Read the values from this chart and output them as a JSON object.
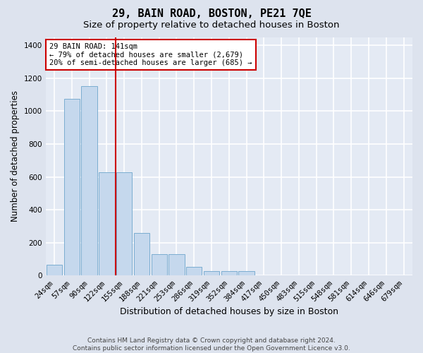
{
  "title": "29, BAIN ROAD, BOSTON, PE21 7QE",
  "subtitle": "Size of property relative to detached houses in Boston",
  "xlabel": "Distribution of detached houses by size in Boston",
  "ylabel": "Number of detached properties",
  "footnote": "Contains HM Land Registry data © Crown copyright and database right 2024.\nContains public sector information licensed under the Open Government Licence v3.0.",
  "categories": [
    "24sqm",
    "57sqm",
    "90sqm",
    "122sqm",
    "155sqm",
    "188sqm",
    "221sqm",
    "253sqm",
    "286sqm",
    "319sqm",
    "352sqm",
    "384sqm",
    "417sqm",
    "450sqm",
    "483sqm",
    "515sqm",
    "548sqm",
    "581sqm",
    "614sqm",
    "646sqm",
    "679sqm"
  ],
  "values": [
    65,
    1075,
    1150,
    630,
    630,
    260,
    130,
    130,
    55,
    30,
    30,
    30,
    0,
    0,
    0,
    0,
    0,
    0,
    0,
    0,
    0
  ],
  "bar_color": "#c5d8ed",
  "bar_edge_color": "#7badd1",
  "vline_color": "#cc0000",
  "annotation_text": "29 BAIN ROAD: 141sqm\n← 79% of detached houses are smaller (2,679)\n20% of semi-detached houses are larger (685) →",
  "annotation_box_color": "white",
  "annotation_box_edge": "#cc0000",
  "ylim": [
    0,
    1450
  ],
  "yticks": [
    0,
    200,
    400,
    600,
    800,
    1000,
    1200,
    1400
  ],
  "background_color": "#dde3ee",
  "plot_background": "#e4eaf4",
  "grid_color": "white",
  "title_fontsize": 11,
  "subtitle_fontsize": 9.5,
  "tick_fontsize": 7.5,
  "ylabel_fontsize": 8.5,
  "xlabel_fontsize": 9,
  "ann_fontsize": 7.5,
  "footnote_fontsize": 6.5
}
